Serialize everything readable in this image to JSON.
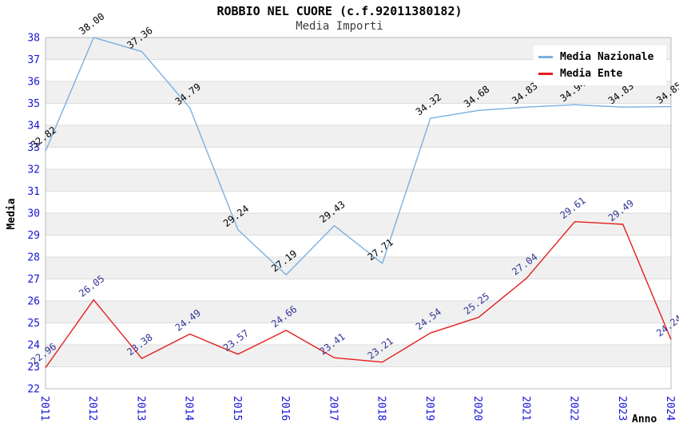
{
  "header": {
    "title": "ROBBIO NEL CUORE (c.f.92011380182)",
    "subtitle": "Media Importi"
  },
  "chart_data": {
    "type": "line",
    "title": "ROBBIO NEL CUORE (c.f.92011380182)",
    "subtitle": "Media Importi",
    "xlabel": "Anno",
    "ylabel": "Media",
    "categories": [
      "2011",
      "2012",
      "2013",
      "2014",
      "2015",
      "2016",
      "2017",
      "2018",
      "2019",
      "2020",
      "2021",
      "2022",
      "2023",
      "2024"
    ],
    "series": [
      {
        "name": "Media Nazionale",
        "color": "#7aafe0",
        "label_color": "#000000",
        "values": [
          32.82,
          38.0,
          37.36,
          34.79,
          29.24,
          27.19,
          29.43,
          27.71,
          34.32,
          34.68,
          34.83,
          34.94,
          34.83,
          34.85
        ]
      },
      {
        "name": "Media Ente",
        "color": "#e51c1c",
        "label_color": "#333399",
        "values": [
          22.96,
          26.05,
          23.38,
          24.49,
          23.57,
          24.66,
          23.41,
          23.21,
          24.54,
          25.25,
          27.04,
          29.61,
          29.49,
          24.24
        ]
      }
    ],
    "ylim": [
      22,
      38
    ],
    "y_step": 1,
    "grid": "horizontal-striped",
    "legend_position": "top-right",
    "axis_tick_color": "#1515d6",
    "band_color": "#f0f0f0",
    "gridline_color": "#dcdcdc",
    "plot_border_color": "#b9b9b9"
  }
}
